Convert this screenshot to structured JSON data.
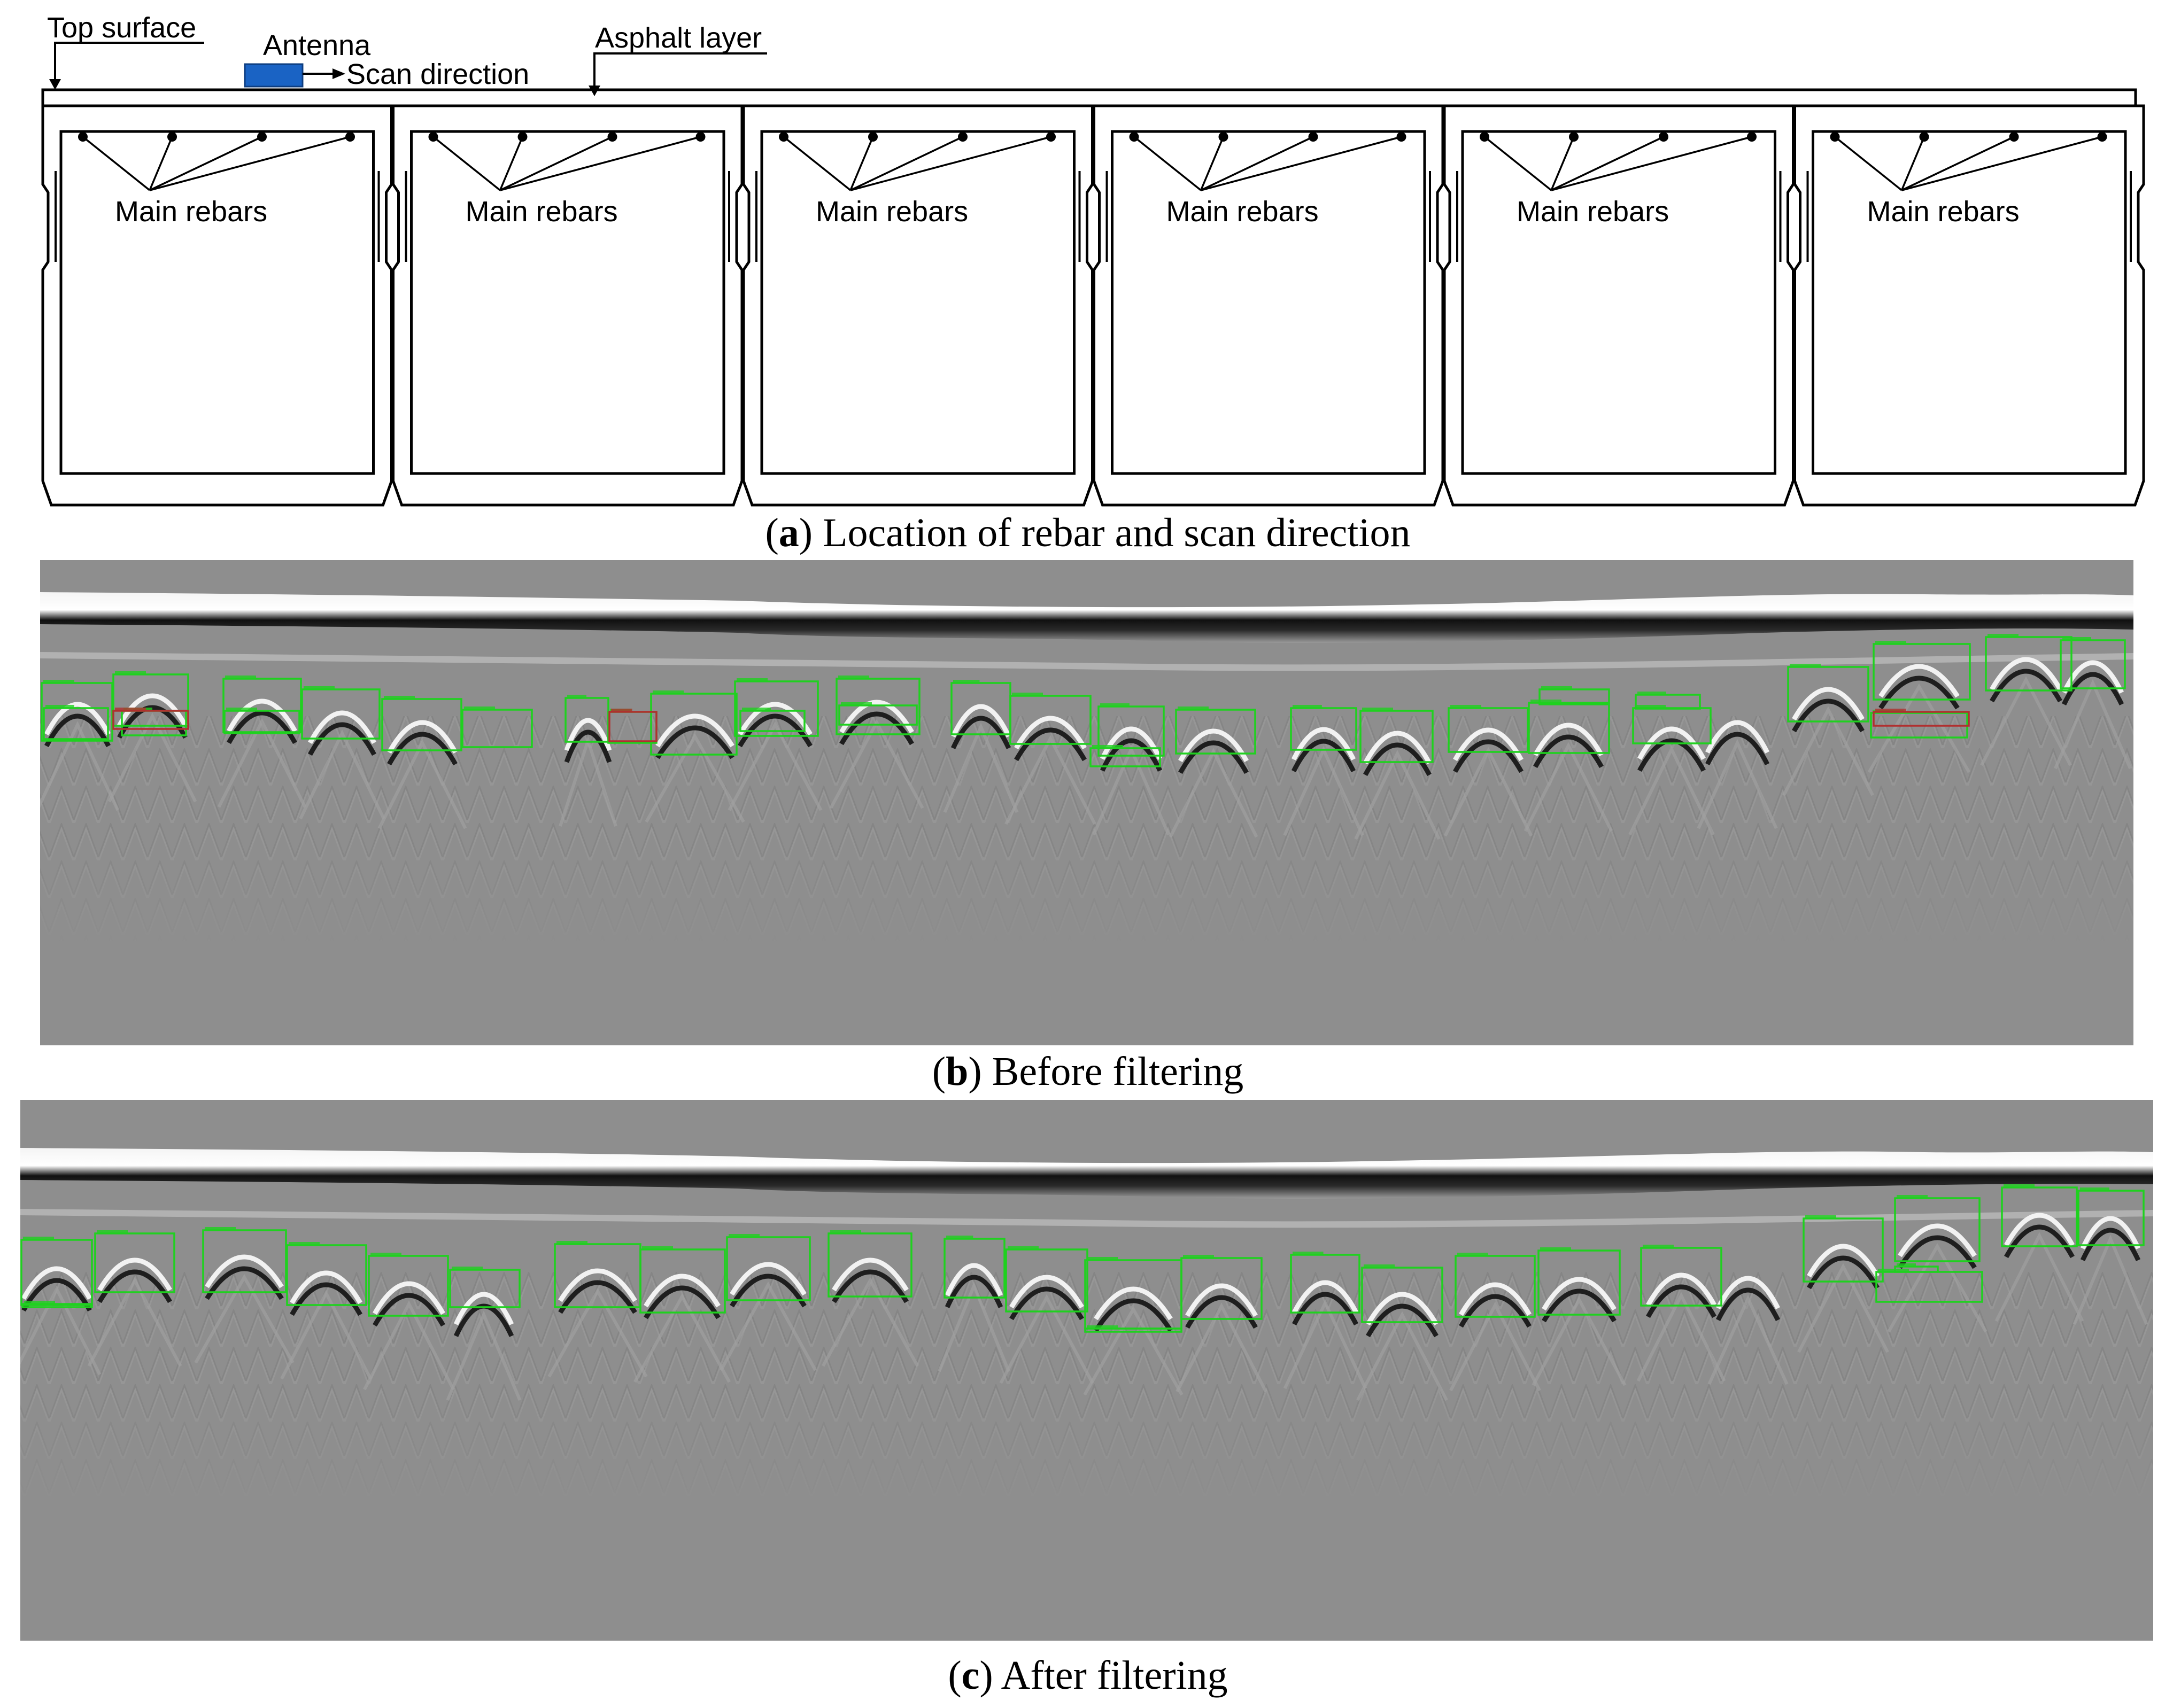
{
  "panel_a": {
    "labels": {
      "top_surface": "Top surface",
      "antenna": "Antenna",
      "scan_direction": "Scan direction",
      "asphalt_layer": "Asphalt layer"
    },
    "rebar_label": "Main rebars",
    "girder_count": 6,
    "caption": {
      "letter": "a",
      "text": " Location of rebar and scan direction"
    }
  },
  "panel_b": {
    "caption": {
      "letter": "b",
      "text": " Before filtering"
    },
    "detection_count": 33
  },
  "panel_c": {
    "caption": {
      "letter": "c",
      "text": " After filtering"
    },
    "detection_count": 27
  },
  "colors": {
    "antenna": "#1a63c4",
    "radar_background": "#8e8e8e",
    "detection_box": "#1fd11f",
    "overlap_box": "#b03030",
    "line": "#000000"
  }
}
